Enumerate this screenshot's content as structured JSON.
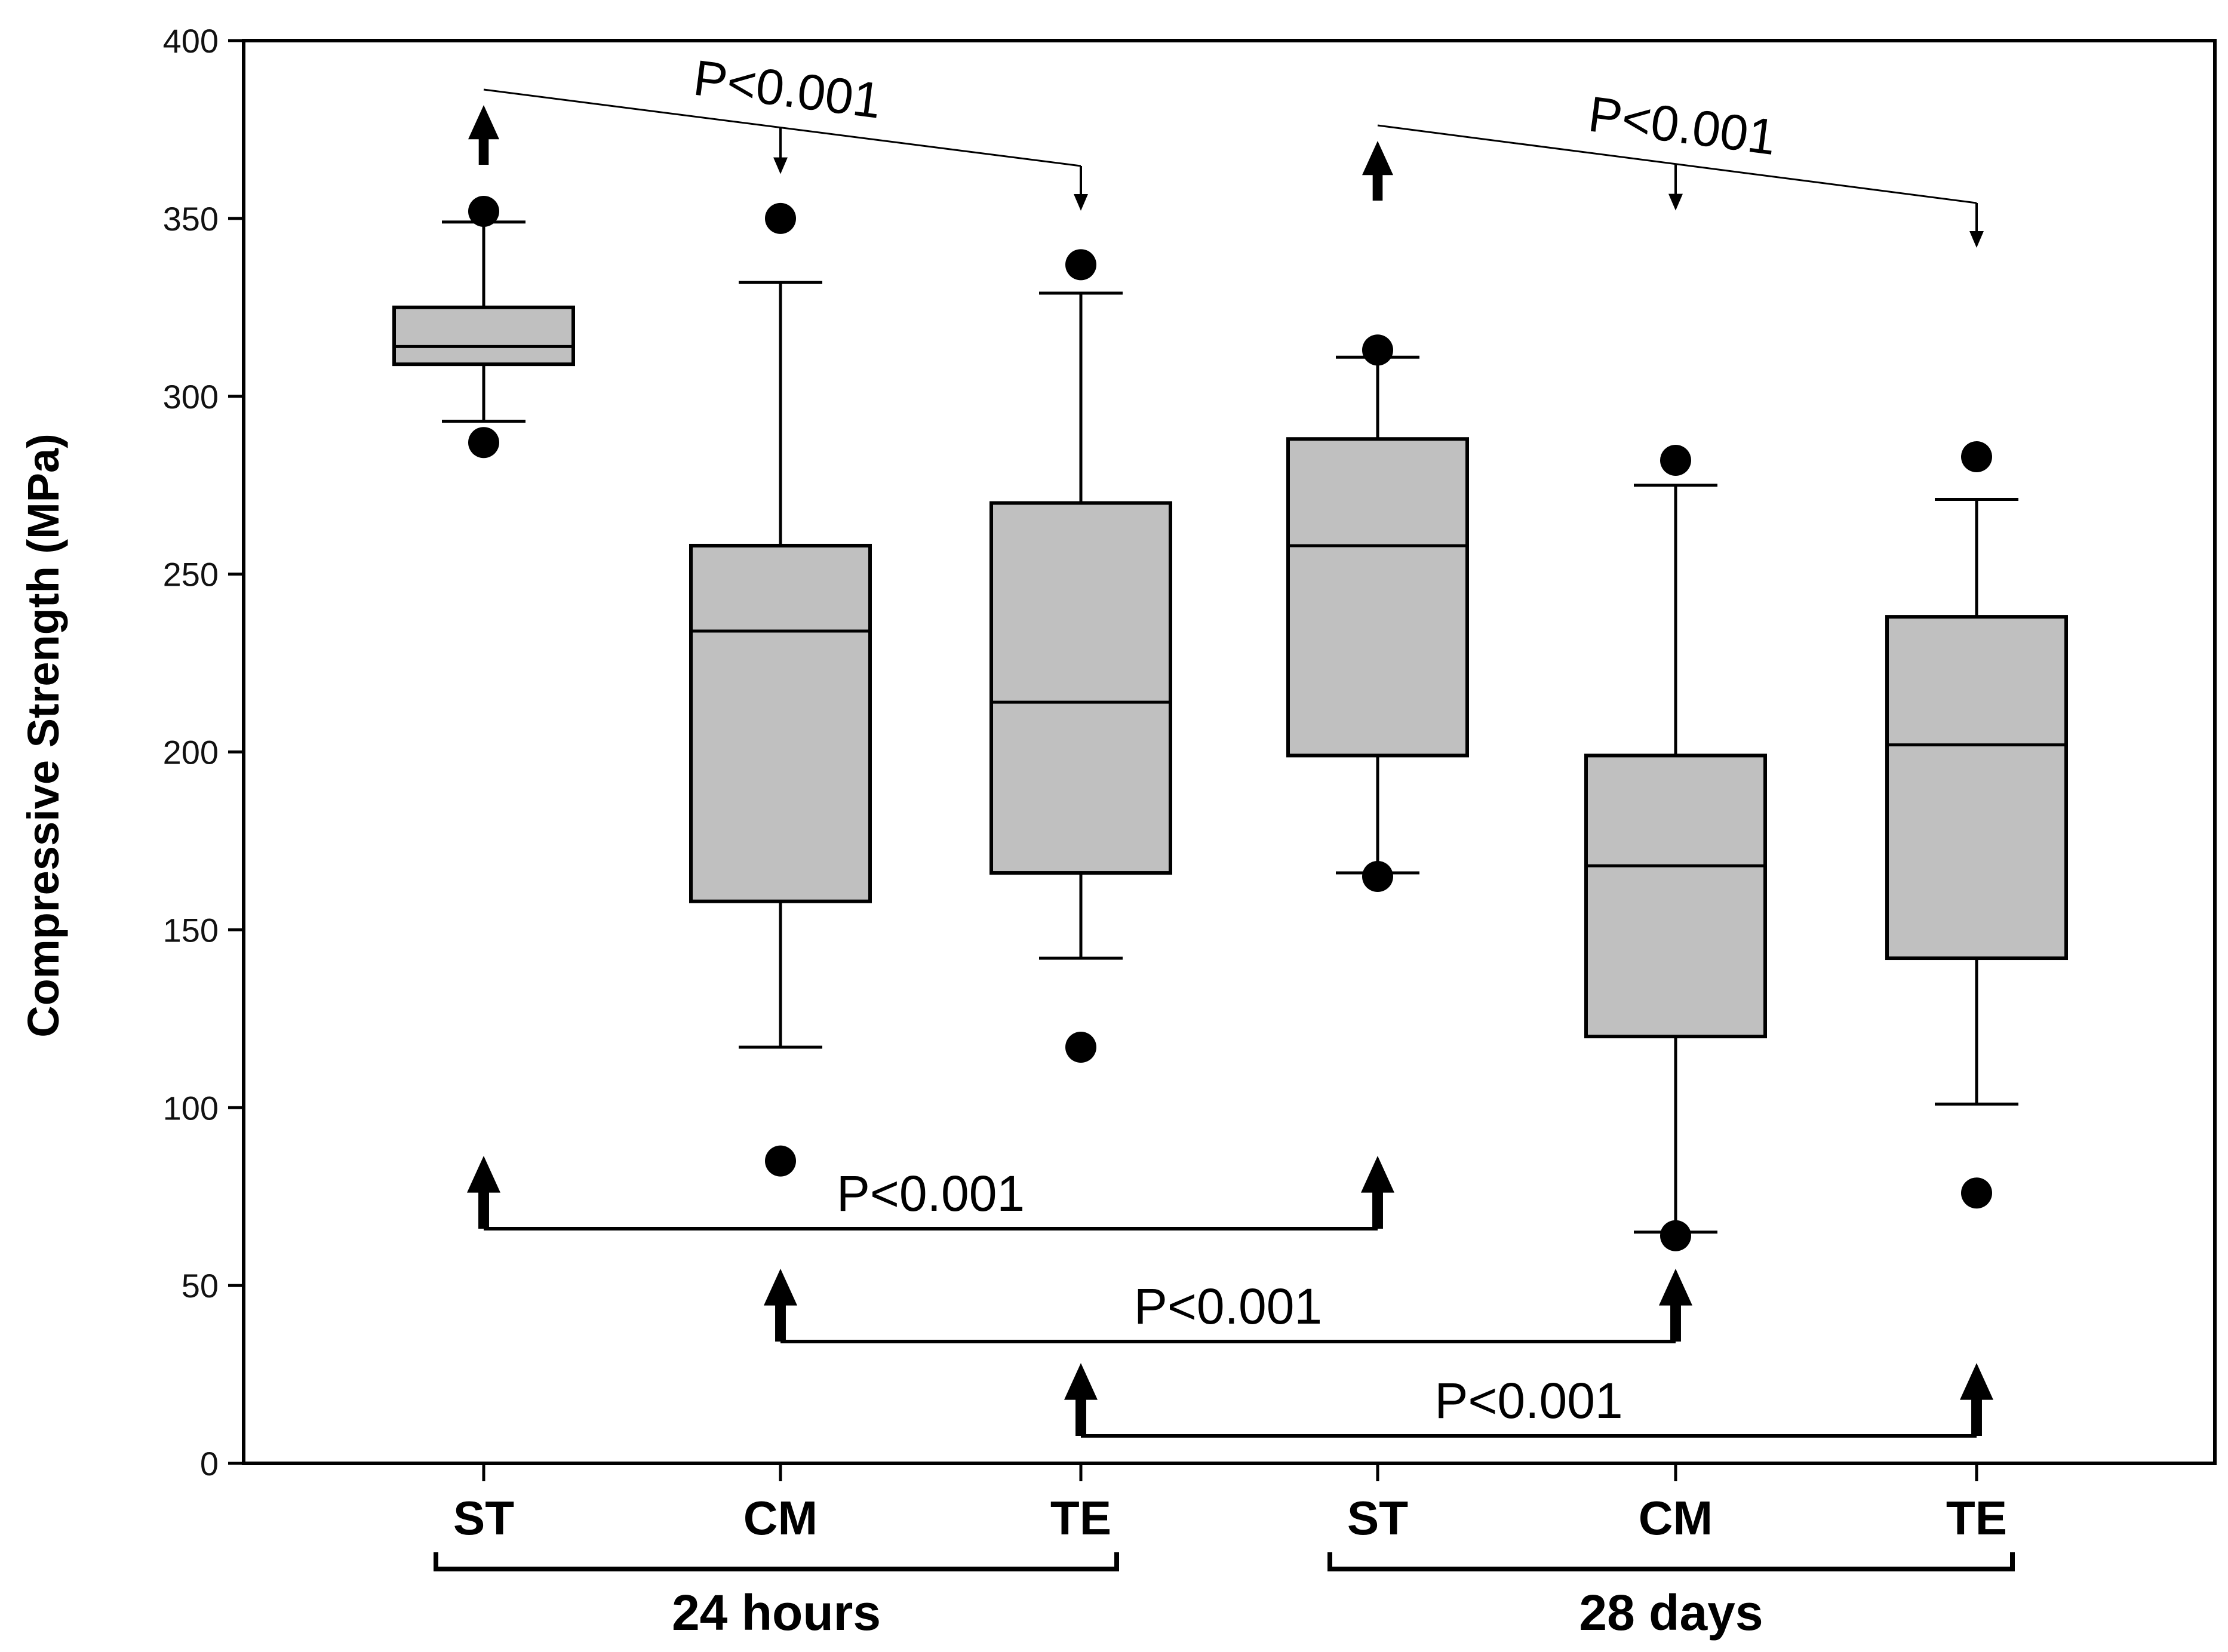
{
  "chart_data": {
    "type": "box",
    "title": "",
    "xlabel": "",
    "ylabel": "Compressive Strength (MPa)",
    "ylim": [
      0,
      400
    ],
    "yticks": [
      0,
      50,
      100,
      150,
      200,
      250,
      300,
      350,
      400
    ],
    "grid": false,
    "categories": [
      "ST",
      "CM",
      "TE",
      "ST",
      "CM",
      "TE"
    ],
    "groups": [
      {
        "label": "24 hours",
        "categories": [
          0,
          1,
          2
        ]
      },
      {
        "label": "28 days",
        "categories": [
          3,
          4,
          5
        ]
      }
    ],
    "boxes": [
      {
        "category": "ST",
        "group": "24 hours",
        "whisker_low": 293,
        "q1": 309,
        "median": 314,
        "q3": 325,
        "whisker_high": 349,
        "outliers": [
          287,
          352
        ]
      },
      {
        "category": "CM",
        "group": "24 hours",
        "whisker_low": 117,
        "q1": 158,
        "median": 234,
        "q3": 258,
        "whisker_high": 332,
        "outliers": [
          85,
          350
        ]
      },
      {
        "category": "TE",
        "group": "24 hours",
        "whisker_low": 142,
        "q1": 166,
        "median": 214,
        "q3": 270,
        "whisker_high": 329,
        "outliers": [
          117,
          337
        ]
      },
      {
        "category": "ST",
        "group": "28 days",
        "whisker_low": 166,
        "q1": 199,
        "median": 258,
        "q3": 288,
        "whisker_high": 311,
        "outliers": [
          165,
          313
        ]
      },
      {
        "category": "CM",
        "group": "28 days",
        "whisker_low": 65,
        "q1": 120,
        "median": 168,
        "q3": 199,
        "whisker_high": 275,
        "outliers": [
          64,
          282
        ]
      },
      {
        "category": "TE",
        "group": "28 days",
        "whisker_low": 101,
        "q1": 142,
        "median": 202,
        "q3": 238,
        "whisker_high": 271,
        "outliers": [
          76,
          283
        ]
      }
    ],
    "annotations": [
      {
        "text": "P<0.001",
        "kind": "top",
        "from": 0,
        "to": 2,
        "via": 1
      },
      {
        "text": "P<0.001",
        "kind": "top",
        "from": 3,
        "to": 5,
        "via": 4
      },
      {
        "text": "P<0.001",
        "kind": "bottom",
        "from": 0,
        "to": 3
      },
      {
        "text": "P<0.001",
        "kind": "bottom",
        "from": 1,
        "to": 4
      },
      {
        "text": "P<0.001",
        "kind": "bottom",
        "from": 2,
        "to": 5
      }
    ]
  }
}
